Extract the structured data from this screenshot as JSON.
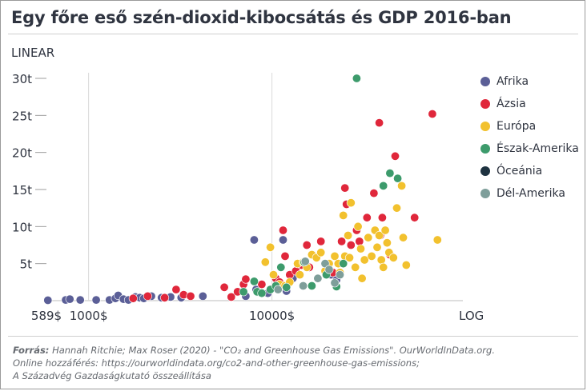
{
  "chart_data": {
    "type": "scatter",
    "title": "Egy főre eső szén-dioxid-kibocsátás és GDP 2016-ban",
    "y_scale_label": "LINEAR",
    "x_scale_label": "LOG",
    "x_scale": "log",
    "y_scale": "linear",
    "xlim": [
      589,
      110000
    ],
    "ylim": [
      0,
      30
    ],
    "x_ticks": [
      {
        "value": 589,
        "label": "589$"
      },
      {
        "value": 1000,
        "label": "1000$"
      },
      {
        "value": 10000,
        "label": "10000$"
      }
    ],
    "y_ticks": [
      {
        "value": 30,
        "label": "30t"
      },
      {
        "value": 25,
        "label": "25t"
      },
      {
        "value": 20,
        "label": "20t"
      },
      {
        "value": 15,
        "label": "15t"
      },
      {
        "value": 10,
        "label": "10t"
      },
      {
        "value": 5,
        "label": "5t"
      }
    ],
    "legend_position": "right",
    "series": [
      {
        "name": "Afrika",
        "color": "#5b5f97",
        "points": [
          [
            600,
            0.05
          ],
          [
            750,
            0.1
          ],
          [
            790,
            0.2
          ],
          [
            900,
            0.1
          ],
          [
            1100,
            0.1
          ],
          [
            1300,
            0.1
          ],
          [
            1400,
            0.3
          ],
          [
            1450,
            0.7
          ],
          [
            1550,
            0.2
          ],
          [
            1650,
            0.1
          ],
          [
            1800,
            0.5
          ],
          [
            1900,
            0.4
          ],
          [
            2000,
            0.3
          ],
          [
            2200,
            0.6
          ],
          [
            2500,
            0.4
          ],
          [
            2800,
            0.5
          ],
          [
            3200,
            0.4
          ],
          [
            4200,
            0.6
          ],
          [
            7200,
            0.6
          ],
          [
            8000,
            8.2
          ],
          [
            8200,
            1.5
          ],
          [
            9500,
            1.0
          ],
          [
            11500,
            8.2
          ],
          [
            12000,
            1.3
          ],
          [
            13000,
            3.0
          ],
          [
            21000,
            3.5
          ],
          [
            22500,
            2.8
          ]
        ]
      },
      {
        "name": "Ázsia",
        "color": "#e0273b",
        "points": [
          [
            1750,
            0.3
          ],
          [
            2100,
            0.6
          ],
          [
            2600,
            0.4
          ],
          [
            3000,
            1.5
          ],
          [
            3300,
            0.8
          ],
          [
            3600,
            0.6
          ],
          [
            5500,
            1.8
          ],
          [
            6000,
            0.5
          ],
          [
            6500,
            1.2
          ],
          [
            7000,
            2.2
          ],
          [
            7200,
            2.9
          ],
          [
            8800,
            2.2
          ],
          [
            10500,
            3.0
          ],
          [
            11000,
            2.5
          ],
          [
            11500,
            9.5
          ],
          [
            11800,
            6.0
          ],
          [
            12500,
            3.5
          ],
          [
            13500,
            4.0
          ],
          [
            14500,
            4.8
          ],
          [
            15500,
            7.5
          ],
          [
            16000,
            4.5
          ],
          [
            17500,
            5.8
          ],
          [
            18500,
            8.0
          ],
          [
            21500,
            3.8
          ],
          [
            24000,
            8.0
          ],
          [
            25000,
            15.2
          ],
          [
            25500,
            13.0
          ],
          [
            27000,
            7.5
          ],
          [
            29000,
            9.5
          ],
          [
            30000,
            8.0
          ],
          [
            33000,
            11.2
          ],
          [
            36000,
            14.5
          ],
          [
            38500,
            24.0
          ],
          [
            39000,
            8.8
          ],
          [
            40000,
            11.2
          ],
          [
            44000,
            6.2
          ],
          [
            47000,
            19.5
          ],
          [
            60000,
            11.2
          ],
          [
            75000,
            25.2
          ]
        ]
      },
      {
        "name": "Európa",
        "color": "#f2c12e",
        "points": [
          [
            9200,
            5.2
          ],
          [
            9800,
            7.2
          ],
          [
            10200,
            3.5
          ],
          [
            11000,
            2.2
          ],
          [
            11800,
            2.0
          ],
          [
            12500,
            2.5
          ],
          [
            13800,
            5.0
          ],
          [
            14200,
            3.5
          ],
          [
            14800,
            5.2
          ],
          [
            15500,
            4.5
          ],
          [
            16500,
            6.2
          ],
          [
            17500,
            5.8
          ],
          [
            18500,
            6.5
          ],
          [
            19500,
            4.0
          ],
          [
            20500,
            5.0
          ],
          [
            22000,
            6.0
          ],
          [
            23000,
            5.0
          ],
          [
            23500,
            3.8
          ],
          [
            24500,
            11.5
          ],
          [
            25000,
            6.0
          ],
          [
            26000,
            8.8
          ],
          [
            26500,
            5.8
          ],
          [
            27000,
            13.2
          ],
          [
            28500,
            4.5
          ],
          [
            29500,
            10.0
          ],
          [
            30500,
            7.0
          ],
          [
            31000,
            3.0
          ],
          [
            32000,
            5.5
          ],
          [
            33500,
            8.5
          ],
          [
            35000,
            6.0
          ],
          [
            36500,
            9.5
          ],
          [
            37500,
            7.2
          ],
          [
            38500,
            8.8
          ],
          [
            39500,
            5.5
          ],
          [
            40500,
            4.5
          ],
          [
            41500,
            9.5
          ],
          [
            42500,
            7.8
          ],
          [
            43500,
            6.5
          ],
          [
            46000,
            5.8
          ],
          [
            48000,
            12.5
          ],
          [
            51000,
            15.5
          ],
          [
            52000,
            8.5
          ],
          [
            54000,
            4.8
          ],
          [
            80000,
            8.2
          ]
        ]
      },
      {
        "name": "Észak-Amerika",
        "color": "#3d9b6c",
        "points": [
          [
            7000,
            1.2
          ],
          [
            8000,
            2.6
          ],
          [
            8300,
            1.2
          ],
          [
            8800,
            1.0
          ],
          [
            9800,
            1.5
          ],
          [
            10500,
            2.0
          ],
          [
            11200,
            4.5
          ],
          [
            12000,
            1.8
          ],
          [
            15000,
            5.2
          ],
          [
            16500,
            2.0
          ],
          [
            19800,
            3.5
          ],
          [
            22500,
            1.9
          ],
          [
            24500,
            5.0
          ],
          [
            29000,
            30.0
          ],
          [
            40500,
            15.5
          ],
          [
            44000,
            17.2
          ],
          [
            48500,
            16.5
          ]
        ]
      },
      {
        "name": "Óceánia",
        "color": "#1e3240",
        "points": []
      },
      {
        "name": "Dél-Amerika",
        "color": "#7e9e9a",
        "points": [
          [
            10800,
            1.5
          ],
          [
            14800,
            2.0
          ],
          [
            15200,
            5.3
          ],
          [
            17800,
            3.0
          ],
          [
            19500,
            5.0
          ],
          [
            20500,
            4.2
          ],
          [
            22000,
            2.4
          ],
          [
            23500,
            3.5
          ]
        ]
      }
    ]
  },
  "source": {
    "label": "Forrás:",
    "text": " Hannah Ritchie; Max Roser (2020) - \"CO₂ and Greenhouse Gas Emissions\". OurWorldInData.org.",
    "line2": "Online hozzáférés: https://ourworldindata.org/co2-and-other-greenhouse-gas-emissions;",
    "line3": "A Századvég Gazdaságkutató összeállítása"
  }
}
